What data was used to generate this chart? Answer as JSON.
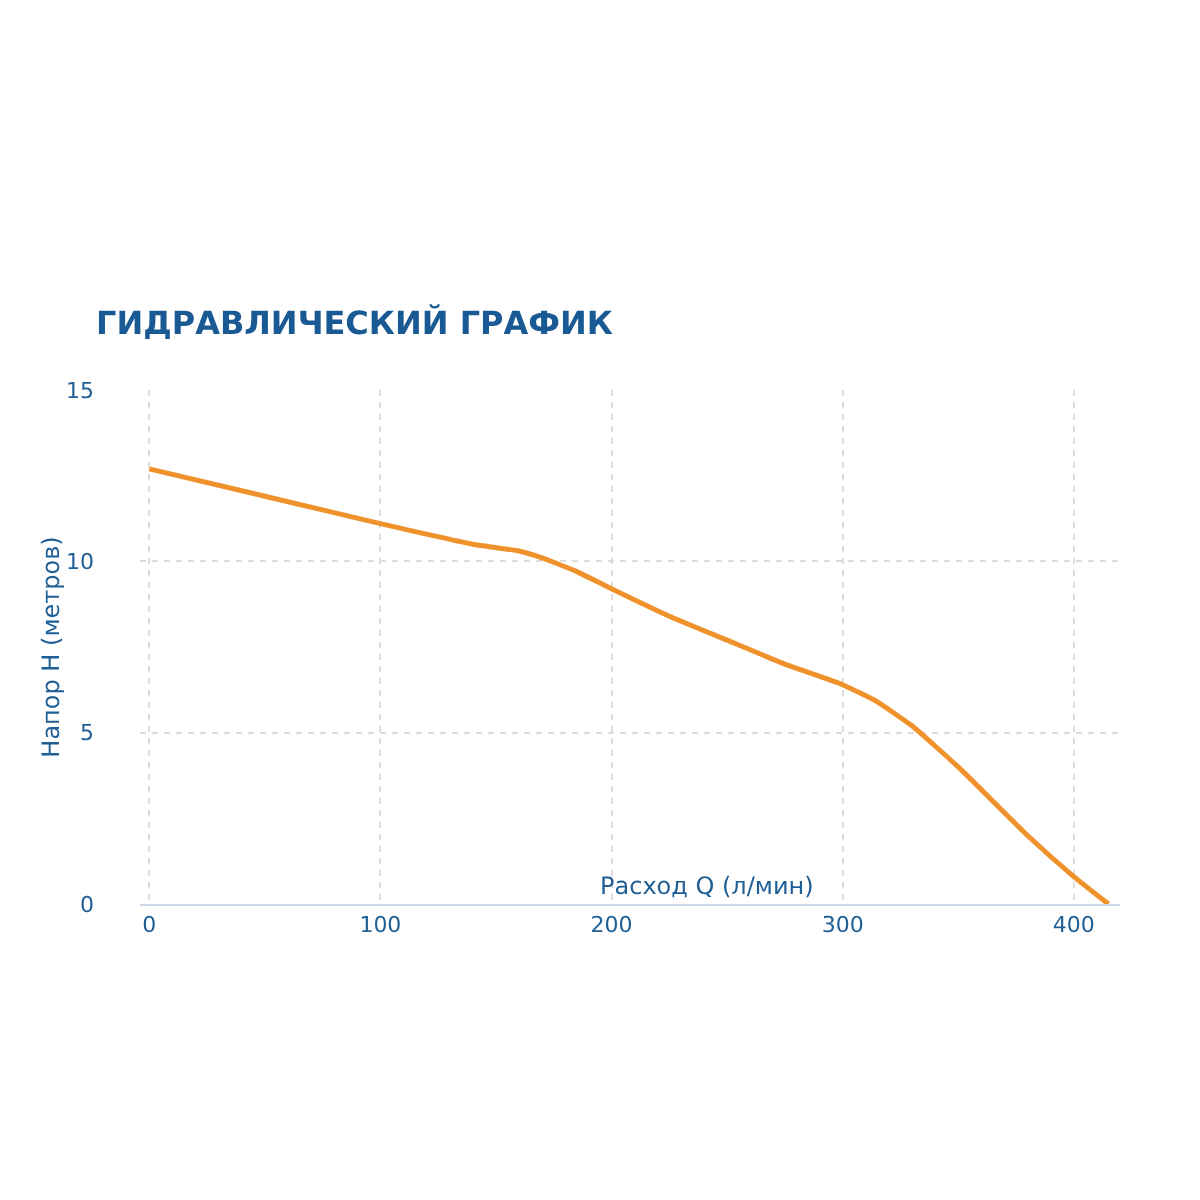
{
  "chart_data": {
    "type": "line",
    "title": "ГИДРАВЛИЧЕСКИЙ ГРАФИК",
    "xlabel": "Расход Q (л/мин)",
    "ylabel": "Напор H (метров)",
    "x": [
      0,
      50,
      100,
      140,
      160,
      170,
      185,
      200,
      225,
      250,
      275,
      300,
      315,
      330,
      350,
      380,
      400,
      415
    ],
    "series": [
      {
        "color": "#f0922b",
        "values": [
          12.7,
          11.9,
          11.1,
          10.5,
          10.3,
          10.1,
          9.7,
          9.2,
          8.4,
          7.7,
          7.0,
          6.4,
          5.9,
          5.2,
          4.0,
          2.0,
          0.8,
          0
        ]
      }
    ],
    "xlim": [
      -4,
      420
    ],
    "ylim": [
      0,
      15
    ],
    "xticks": [
      0,
      100,
      200,
      300,
      400
    ],
    "yticks": [
      0,
      5,
      10,
      15
    ],
    "grid": true,
    "legend": false,
    "marker": "none",
    "line_style": "solid"
  }
}
